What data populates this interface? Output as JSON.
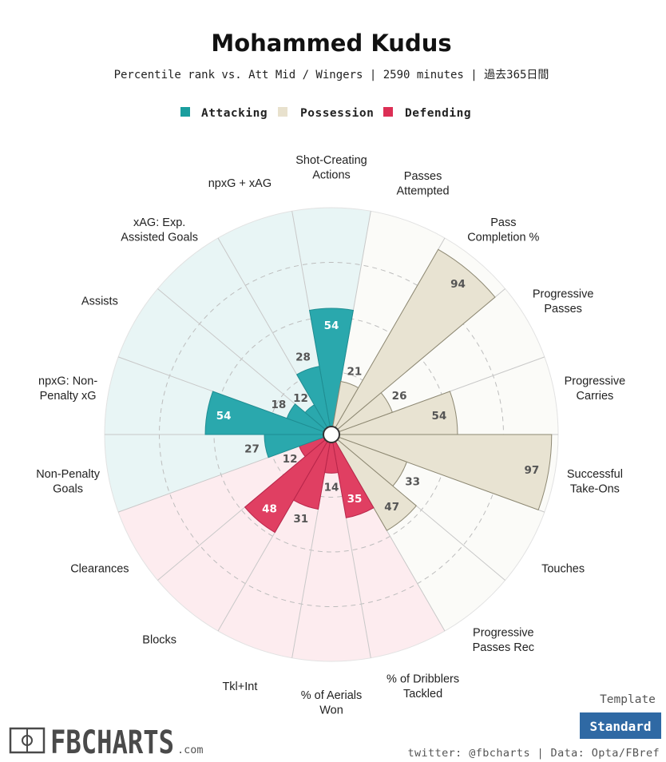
{
  "title": "Mohammed Kudus",
  "subtitle": "Percentile rank vs. Att Mid / Wingers | 2590 minutes | 過去365日間",
  "legend": [
    {
      "label": "Attacking",
      "color": "#1a9e9e"
    },
    {
      "label": "Possession",
      "color": "#e8e1cd"
    },
    {
      "label": "Defending",
      "color": "#dc2f55"
    }
  ],
  "colors": {
    "attacking_fill": "#2aa8ad",
    "attacking_bg": "#e8f5f5",
    "possession_fill": "#e8e3d2",
    "possession_bg": "#fbfbf8",
    "defending_fill": "#e03f62",
    "defending_bg": "#fdecef",
    "grid": "#c8c8c8",
    "template_button": "#2f69a4"
  },
  "template": {
    "label": "Template",
    "button": "Standard"
  },
  "footer": {
    "credit": "twitter: @fbcharts | Data: Opta/FBref"
  },
  "brand": {
    "name": "FBCHARTS",
    "suffix": ".com"
  },
  "chart_data": {
    "type": "bar",
    "subtype": "polar-pizza",
    "rmax": 100,
    "categories": [
      {
        "label": [
          "Shot-Creating",
          "Actions"
        ],
        "value": 54,
        "group": "attacking"
      },
      {
        "label": [
          "Passes",
          "Attempted"
        ],
        "value": 21,
        "group": "possession"
      },
      {
        "label": [
          "Pass",
          "Completion %"
        ],
        "value": 94,
        "group": "possession"
      },
      {
        "label": [
          "Progressive",
          "Passes"
        ],
        "value": 26,
        "group": "possession"
      },
      {
        "label": [
          "Progressive",
          "Carries"
        ],
        "value": 54,
        "group": "possession"
      },
      {
        "label": [
          "Successful",
          "Take-Ons"
        ],
        "value": 97,
        "group": "possession"
      },
      {
        "label": [
          "Touches"
        ],
        "value": 33,
        "group": "possession"
      },
      {
        "label": [
          "Progressive",
          "Passes Rec"
        ],
        "value": 47,
        "group": "possession"
      },
      {
        "label": [
          "% of Dribblers",
          "Tackled"
        ],
        "value": 35,
        "group": "defending"
      },
      {
        "label": [
          "% of Aerials",
          "Won"
        ],
        "value": 14,
        "group": "defending"
      },
      {
        "label": [
          "Tkl+Int"
        ],
        "value": 31,
        "group": "defending"
      },
      {
        "label": [
          "Blocks"
        ],
        "value": 48,
        "group": "defending"
      },
      {
        "label": [
          "Clearances"
        ],
        "value": 12,
        "group": "defending"
      },
      {
        "label": [
          "Non-Penalty",
          "Goals"
        ],
        "value": 27,
        "group": "attacking"
      },
      {
        "label": [
          "npxG: Non-",
          "Penalty xG"
        ],
        "value": 54,
        "group": "attacking"
      },
      {
        "label": [
          "Assists"
        ],
        "value": 18,
        "group": "attacking"
      },
      {
        "label": [
          "xAG: Exp.",
          "Assisted Goals"
        ],
        "value": 12,
        "group": "attacking"
      },
      {
        "label": [
          "npxG + xAG"
        ],
        "value": 28,
        "group": "attacking"
      }
    ]
  }
}
